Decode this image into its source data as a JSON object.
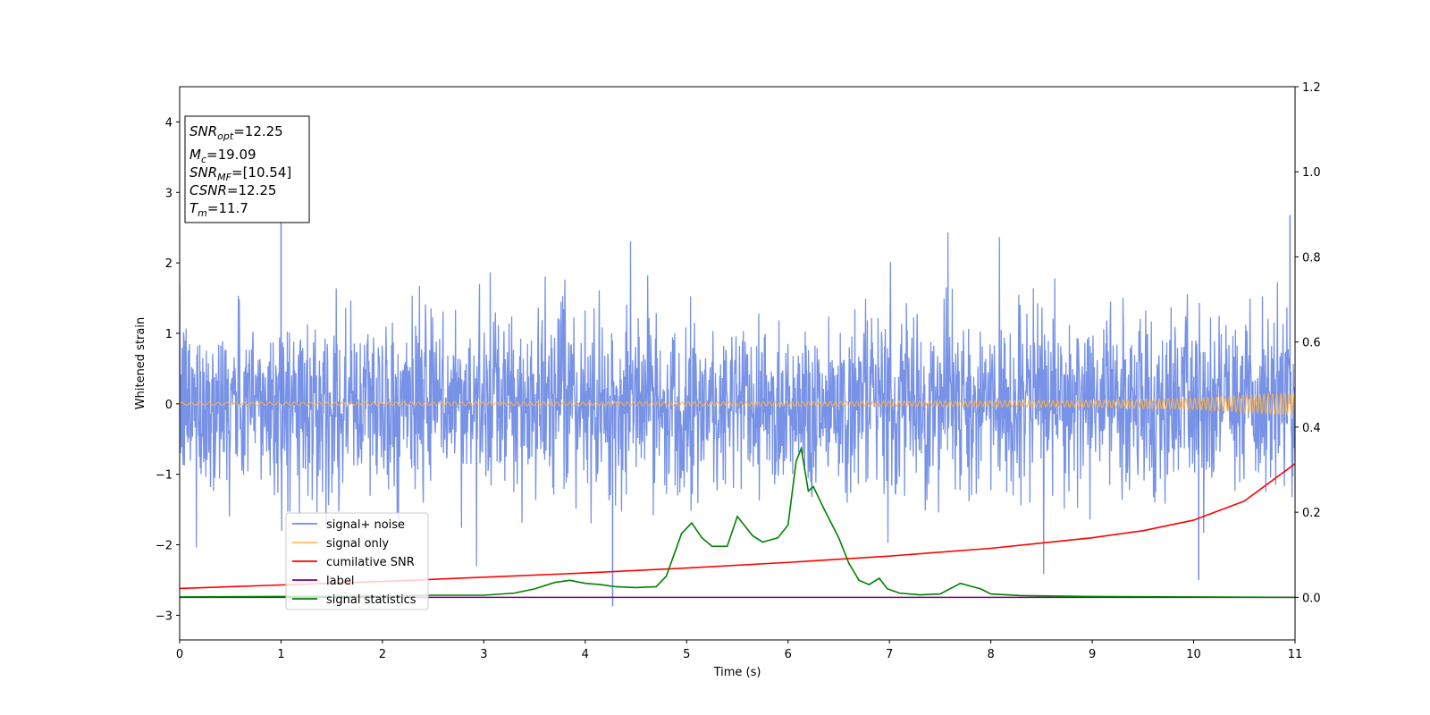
{
  "chart_data": {
    "type": "line",
    "xlabel": "Time (s)",
    "ylabel": "Whitened strain",
    "xlim": [
      0,
      11
    ],
    "ylim_left": [
      -3.35,
      4.5
    ],
    "ylim_right": [
      -0.1,
      1.2
    ],
    "x_ticks": [
      "0",
      "1",
      "2",
      "3",
      "4",
      "5",
      "6",
      "7",
      "8",
      "9",
      "10",
      "11"
    ],
    "y_ticks_left": [
      "4",
      "3",
      "2",
      "1",
      "0",
      "−1",
      "−2",
      "−3"
    ],
    "y_ticks_left_values": [
      4,
      3,
      2,
      1,
      0,
      -1,
      -2,
      -3
    ],
    "y_ticks_right": [
      "1.2",
      "1.0",
      "0.8",
      "0.6",
      "0.4",
      "0.2",
      "0.0"
    ],
    "y_ticks_right_values": [
      1.2,
      1.0,
      0.8,
      0.6,
      0.4,
      0.2,
      0.0
    ],
    "annotation": {
      "snr_opt": {
        "base": "SNR",
        "sub": "opt",
        "value": "=12.25"
      },
      "mc": {
        "base": "M",
        "sub": "c",
        "value": "=19.09"
      },
      "snr_mf": {
        "base": "SNR",
        "sub": "MF",
        "value": "=[10.54]"
      },
      "csnr": {
        "base": "CSNR",
        "sub": "",
        "value": "=12.25"
      },
      "tm": {
        "base": "T",
        "sub": "m",
        "value": "=11.7"
      }
    },
    "legend_position": "lower left",
    "series": [
      {
        "name": "signal+ noise",
        "axis": "left",
        "color": "#5577e0",
        "description": "whitened noise, approx. symmetric band",
        "band_typical": [
          -1.3,
          1.3
        ],
        "band_peak": [
          -2.85,
          2.7
        ],
        "notable_peaks": [
          {
            "x": 1.0,
            "y": 2.6
          },
          {
            "x": 4.27,
            "y": -2.87
          },
          {
            "x": 10.05,
            "y": -2.5
          },
          {
            "x": 10.95,
            "y": 2.68
          }
        ]
      },
      {
        "name": "signal only",
        "axis": "left",
        "color": "#ffb347",
        "description": "chirp, amplitude grows toward end",
        "amplitude_points": [
          [
            0,
            0.02
          ],
          [
            6,
            0.03
          ],
          [
            9,
            0.05
          ],
          [
            10,
            0.08
          ],
          [
            11,
            0.16
          ]
        ]
      },
      {
        "name": "cumilative SNR",
        "axis": "left",
        "color": "#ff0000",
        "points": [
          [
            0,
            -2.62
          ],
          [
            1,
            -2.57
          ],
          [
            2,
            -2.52
          ],
          [
            3,
            -2.46
          ],
          [
            4,
            -2.4
          ],
          [
            5,
            -2.33
          ],
          [
            6,
            -2.25
          ],
          [
            7,
            -2.16
          ],
          [
            8,
            -2.05
          ],
          [
            9,
            -1.9
          ],
          [
            9.5,
            -1.8
          ],
          [
            10,
            -1.65
          ],
          [
            10.5,
            -1.38
          ],
          [
            11,
            -0.85
          ]
        ]
      },
      {
        "name": "label",
        "axis": "right",
        "color": "#800080",
        "points": [
          [
            0,
            0.0
          ],
          [
            11,
            0.0
          ]
        ]
      },
      {
        "name": "signal statistics",
        "axis": "right",
        "color": "#008000",
        "points": [
          [
            0,
            0.001
          ],
          [
            1,
            0.002
          ],
          [
            2,
            0.003
          ],
          [
            2.5,
            0.005
          ],
          [
            3,
            0.005
          ],
          [
            3.3,
            0.01
          ],
          [
            3.5,
            0.02
          ],
          [
            3.7,
            0.035
          ],
          [
            3.85,
            0.04
          ],
          [
            4,
            0.033
          ],
          [
            4.15,
            0.03
          ],
          [
            4.3,
            0.025
          ],
          [
            4.5,
            0.023
          ],
          [
            4.7,
            0.025
          ],
          [
            4.8,
            0.05
          ],
          [
            4.95,
            0.15
          ],
          [
            5.05,
            0.175
          ],
          [
            5.15,
            0.14
          ],
          [
            5.25,
            0.12
          ],
          [
            5.4,
            0.12
          ],
          [
            5.5,
            0.19
          ],
          [
            5.65,
            0.145
          ],
          [
            5.75,
            0.13
          ],
          [
            5.9,
            0.14
          ],
          [
            6.0,
            0.17
          ],
          [
            6.08,
            0.32
          ],
          [
            6.13,
            0.35
          ],
          [
            6.2,
            0.25
          ],
          [
            6.25,
            0.26
          ],
          [
            6.35,
            0.21
          ],
          [
            6.5,
            0.14
          ],
          [
            6.6,
            0.08
          ],
          [
            6.7,
            0.04
          ],
          [
            6.8,
            0.03
          ],
          [
            6.9,
            0.045
          ],
          [
            6.98,
            0.02
          ],
          [
            7.1,
            0.01
          ],
          [
            7.3,
            0.006
          ],
          [
            7.5,
            0.008
          ],
          [
            7.7,
            0.033
          ],
          [
            7.9,
            0.02
          ],
          [
            8.0,
            0.008
          ],
          [
            8.3,
            0.004
          ],
          [
            9,
            0.002
          ],
          [
            11,
            0.0
          ]
        ]
      }
    ]
  }
}
